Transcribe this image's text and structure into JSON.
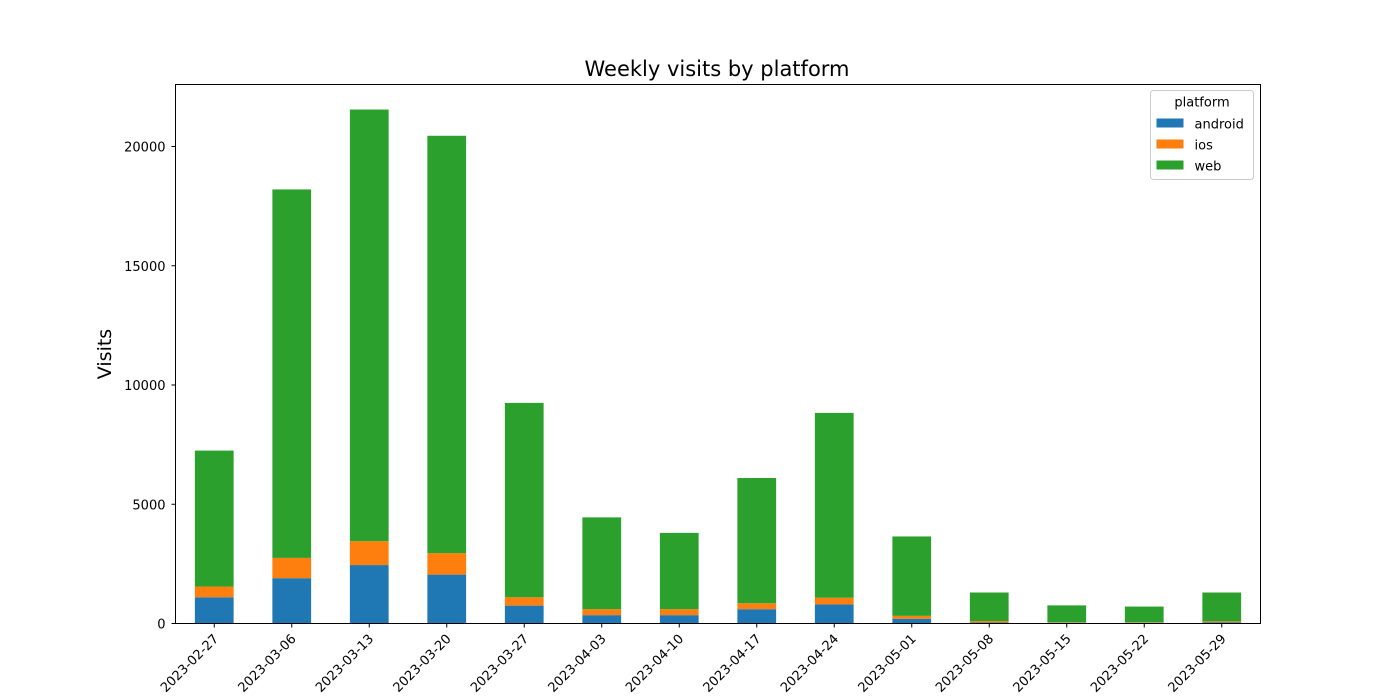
{
  "chart_data": {
    "type": "bar",
    "stacked": true,
    "title": "Weekly visits by platform",
    "xlabel": "",
    "ylabel": "Visits",
    "ylim": [
      0,
      22600
    ],
    "yticks": [
      0,
      5000,
      10000,
      15000,
      20000
    ],
    "categories": [
      "2023-02-27",
      "2023-03-06",
      "2023-03-13",
      "2023-03-20",
      "2023-03-27",
      "2023-04-03",
      "2023-04-10",
      "2023-04-17",
      "2023-04-24",
      "2023-05-01",
      "2023-05-08",
      "2023-05-15",
      "2023-05-22",
      "2023-05-29"
    ],
    "series": [
      {
        "name": "android",
        "color": "#1f77b4",
        "values": [
          1100,
          1900,
          2450,
          2050,
          750,
          350,
          350,
          600,
          800,
          200,
          40,
          30,
          30,
          50
        ]
      },
      {
        "name": "ios",
        "color": "#ff7f0e",
        "values": [
          450,
          850,
          1000,
          900,
          350,
          250,
          250,
          250,
          280,
          120,
          60,
          20,
          20,
          40
        ]
      },
      {
        "name": "web",
        "color": "#2ca02c",
        "values": [
          5700,
          15450,
          18100,
          17500,
          8150,
          3850,
          3200,
          5250,
          7750,
          3330,
          1200,
          710,
          660,
          1210
        ]
      }
    ],
    "legend": {
      "title": "platform",
      "position": "top-right"
    },
    "grid": false
  }
}
